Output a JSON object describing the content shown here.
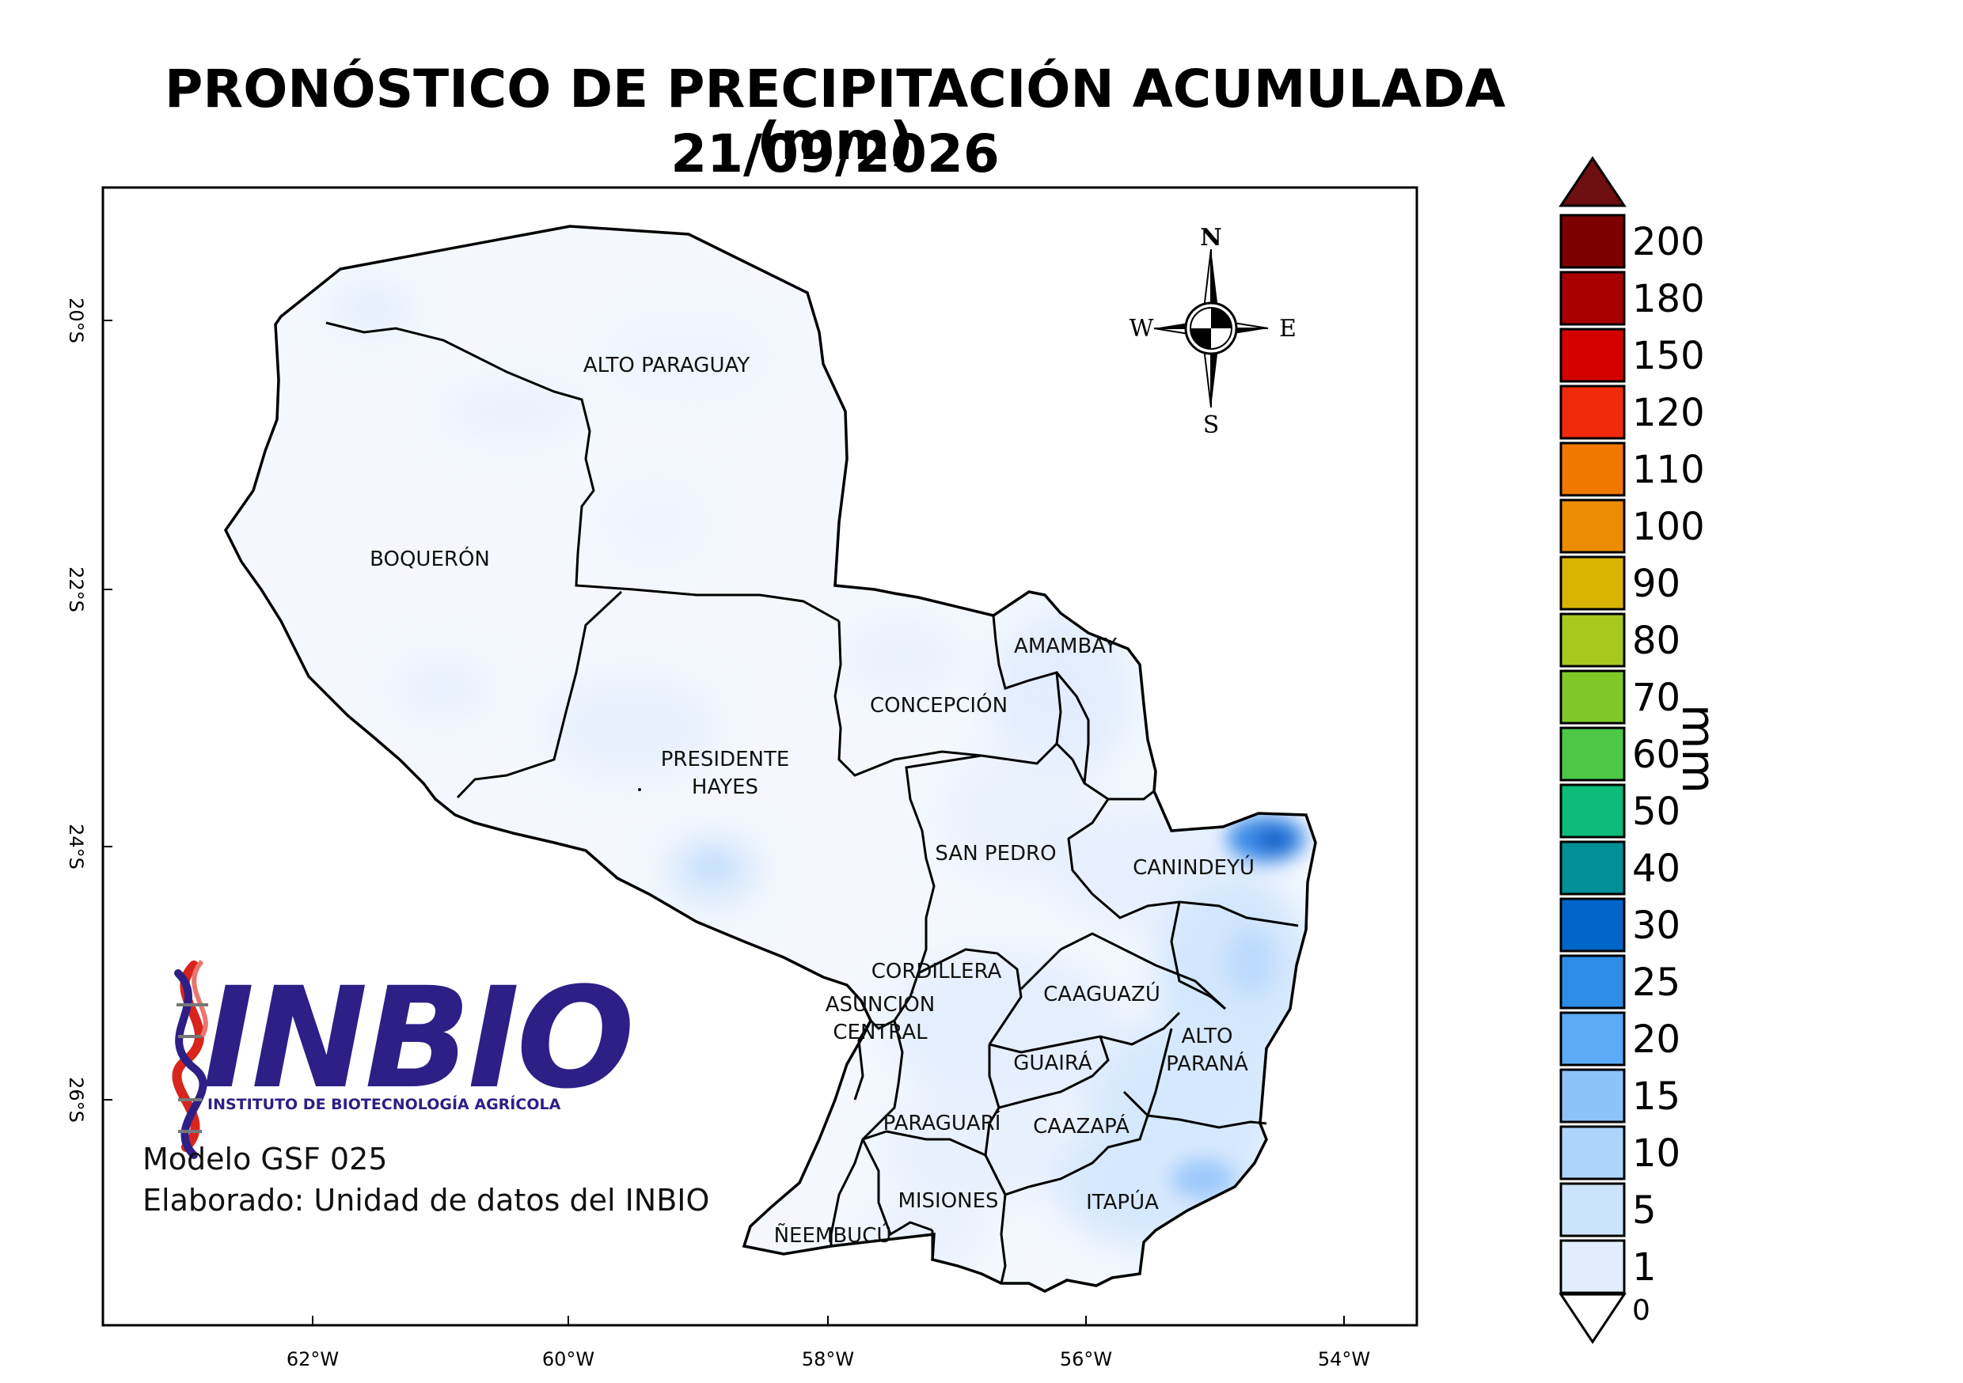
{
  "title": {
    "line1": "PRONÓSTICO DE PRECIPITACIÓN ACUMULADA (mm)",
    "line2": "21/09/2026"
  },
  "info": {
    "model": "Modelo GSF 025",
    "author": "Elaborado: Unidad de datos del INBIO"
  },
  "logo": {
    "name": "INBIO",
    "subtitle": "INSTITUTO DE BIOTECNOLOGÍA AGRÍCOLA",
    "icon": "dna-helix-icon"
  },
  "compass": {
    "north": "N",
    "south": "S",
    "east": "E",
    "west": "W"
  },
  "axes": {
    "lon_ticks": [
      "62°W",
      "60°W",
      "58°W",
      "56°W",
      "54°W"
    ],
    "lat_ticks": [
      "20°S",
      "22°S",
      "24°S",
      "26°S"
    ]
  },
  "departments": [
    {
      "name": "ALTO PARAGUAY"
    },
    {
      "name": "BOQUERÓN"
    },
    {
      "name": "PRESIDENTE",
      "name2": "HAYES"
    },
    {
      "name": "CONCEPCIÓN"
    },
    {
      "name": "AMAMBAY"
    },
    {
      "name": "SAN PEDRO"
    },
    {
      "name": "CANINDEYÚ"
    },
    {
      "name": "CORDILLERA"
    },
    {
      "name": "CAAGUAZÚ"
    },
    {
      "name": "ASUNCIÓN",
      "name2": "CENTRAL"
    },
    {
      "name": "ALTO",
      "name2": "PARANÁ"
    },
    {
      "name": "GUAIRÁ"
    },
    {
      "name": "PARAGUARÍ"
    },
    {
      "name": "CAAZAPÁ"
    },
    {
      "name": "MISIONES"
    },
    {
      "name": "ITAPÚA"
    },
    {
      "name": "ÑEEMBUCÚ"
    }
  ],
  "colorbar": {
    "unit": "mm",
    "over_color": "#6e0f12",
    "under_label": "0",
    "levels": [
      {
        "label": "200",
        "color": "#7d0000"
      },
      {
        "label": "180",
        "color": "#a80000"
      },
      {
        "label": "150",
        "color": "#d40000"
      },
      {
        "label": "120",
        "color": "#f02a0a"
      },
      {
        "label": "110",
        "color": "#f07800"
      },
      {
        "label": "100",
        "color": "#ec8c00"
      },
      {
        "label": "90",
        "color": "#d8b400"
      },
      {
        "label": "80",
        "color": "#a8c81e"
      },
      {
        "label": "70",
        "color": "#80c828"
      },
      {
        "label": "60",
        "color": "#4cc846"
      },
      {
        "label": "50",
        "color": "#0cbc78"
      },
      {
        "label": "40",
        "color": "#009096"
      },
      {
        "label": "30",
        "color": "#0064c8"
      },
      {
        "label": "25",
        "color": "#2c8ce6"
      },
      {
        "label": "20",
        "color": "#5aaaf6"
      },
      {
        "label": "15",
        "color": "#8cc4fa"
      },
      {
        "label": "10",
        "color": "#aed4fc"
      },
      {
        "label": "5",
        "color": "#cce3fd"
      },
      {
        "label": "1",
        "color": "#e2eefe"
      }
    ]
  }
}
